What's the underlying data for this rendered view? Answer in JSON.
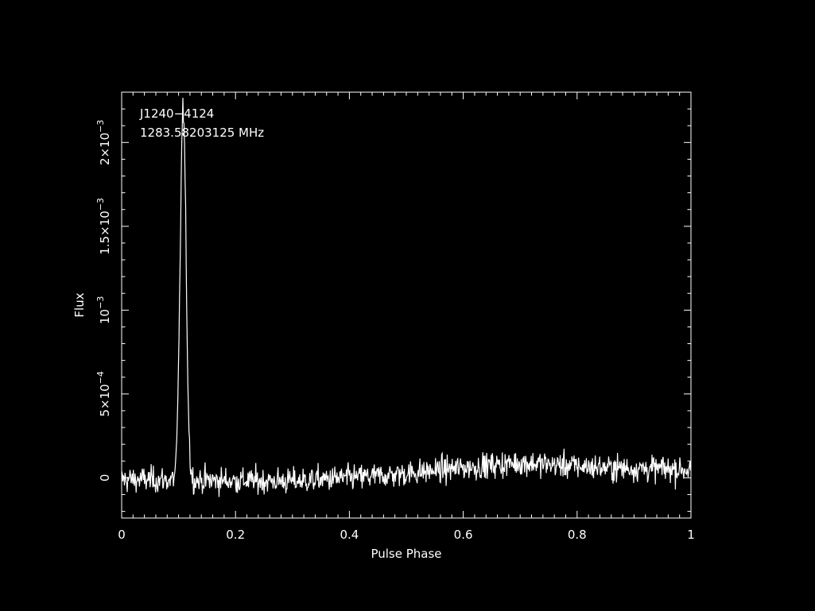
{
  "chart_data": {
    "type": "line",
    "source_name": "J1240−4124",
    "frequency": "1283.58203125 MHz",
    "xlabel": "Pulse Phase",
    "ylabel": "Flux",
    "xlim": [
      0,
      1
    ],
    "ylim": [
      -0.00024,
      0.0023
    ],
    "x_ticks": [
      {
        "value": 0,
        "label": "0"
      },
      {
        "value": 0.2,
        "label": "0.2"
      },
      {
        "value": 0.4,
        "label": "0.4"
      },
      {
        "value": 0.6,
        "label": "0.6"
      },
      {
        "value": 0.8,
        "label": "0.8"
      },
      {
        "value": 1,
        "label": "1"
      }
    ],
    "y_ticks": [
      {
        "value": 0,
        "mantissa": "",
        "exponent": "",
        "zero_label": "0"
      },
      {
        "value": 0.0005,
        "mantissa": "5×10",
        "exponent": "−4"
      },
      {
        "value": 0.001,
        "mantissa": "10",
        "exponent": "−3"
      },
      {
        "value": 0.0015,
        "mantissa": "1.5×10",
        "exponent": "−3"
      },
      {
        "value": 0.002,
        "mantissa": "2×10",
        "exponent": "−3"
      }
    ],
    "baseline_noise": 5.5e-05,
    "baseline_trend": [
      [
        0,
        -1e-05
      ],
      [
        0.3,
        -2e-05
      ],
      [
        0.45,
        1e-05
      ],
      [
        0.6,
        6e-05
      ],
      [
        0.7,
        9e-05
      ],
      [
        0.85,
        6e-05
      ],
      [
        1,
        5e-05
      ]
    ],
    "pulse": {
      "center_phase": 0.108,
      "peak_flux": 0.00221,
      "width_phase": 0.0052
    },
    "grid": false,
    "colors": {
      "background": "#000000",
      "foreground": "#ffffff"
    }
  }
}
